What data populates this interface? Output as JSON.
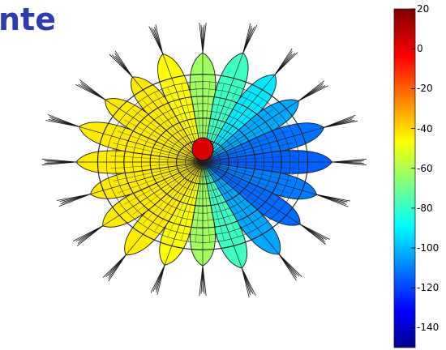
{
  "header": {
    "title_fragment": "nte"
  },
  "chart_data": {
    "type": "surface",
    "description_shape": "radial flower-shaped 3D mesh surface",
    "colormap": "jet",
    "colorbar": {
      "range": [
        -150,
        20
      ],
      "ticks": [
        {
          "value": 20,
          "label": "20"
        },
        {
          "value": 0,
          "label": "0"
        },
        {
          "value": -20,
          "label": "-20"
        },
        {
          "value": -40,
          "label": "-40"
        },
        {
          "value": -60,
          "label": "-60"
        },
        {
          "value": -80,
          "label": "-80"
        },
        {
          "value": -100,
          "label": "-100"
        },
        {
          "value": -120,
          "label": "-120"
        },
        {
          "value": -140,
          "label": "-140"
        }
      ],
      "placement": "right"
    },
    "petal_count": 20,
    "center_value": 5,
    "value_trend": "decreases from left (about -30) to right (about -130)"
  }
}
